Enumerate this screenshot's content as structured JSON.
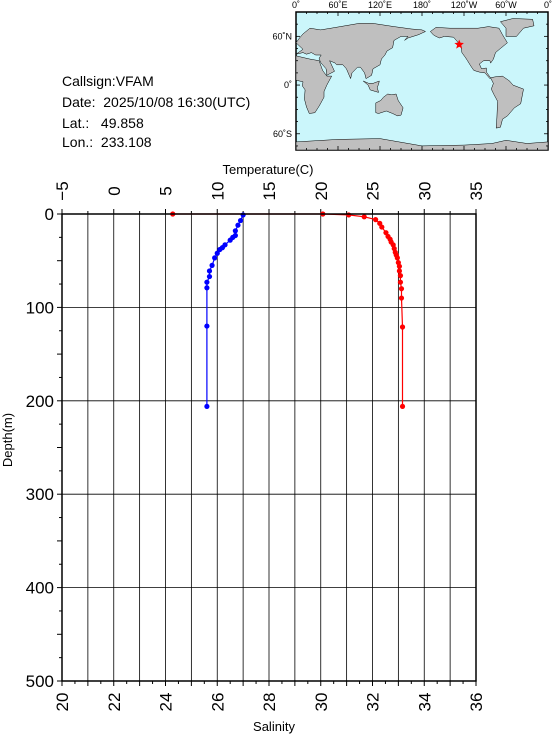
{
  "info": {
    "callsign": "Callsign:VFAM",
    "date": "Date:  2025/10/08 16:30(UTC)",
    "lat": "Lat.:   49.858",
    "lon": "Lon.:  233.108"
  },
  "map": {
    "lon_labels": [
      "0˚",
      "60˚E",
      "120˚E",
      "180˚",
      "120˚W",
      "60˚W",
      "0˚"
    ],
    "lat_labels": [
      "60˚N",
      "0˚",
      "60˚S"
    ],
    "ocean_color": "#cbf6fb",
    "land_color": "#bfbfbf",
    "marker_color": "#ff0000",
    "marker_lon": 233.108,
    "marker_lat": 49.858
  },
  "chart_data": {
    "type": "line",
    "title": "",
    "y_label": "Depth(m)",
    "y_range": [
      0,
      500
    ],
    "y_ticks": [
      "0",
      "100",
      "200",
      "300",
      "400",
      "500"
    ],
    "y_inverted": true,
    "x_top_label": "Temperature(C)",
    "x_top_range": [
      -5,
      35
    ],
    "x_top_ticks": [
      "−5",
      "0",
      "5",
      "10",
      "15",
      "20",
      "25",
      "30",
      "35"
    ],
    "x_bottom_label": "Salinity",
    "x_bottom_range": [
      20,
      36
    ],
    "x_bottom_ticks": [
      "20",
      "22",
      "24",
      "26",
      "28",
      "30",
      "32",
      "34",
      "36"
    ],
    "grid": true,
    "series": [
      {
        "axis": "temperature",
        "color": "#ff0000",
        "points": [
          [
            5.7,
            0
          ],
          [
            20.2,
            0
          ],
          [
            22.7,
            1
          ],
          [
            24.2,
            3
          ],
          [
            25.3,
            6
          ],
          [
            25.7,
            10
          ],
          [
            25.9,
            14
          ],
          [
            26.3,
            20
          ],
          [
            26.5,
            24
          ],
          [
            26.7,
            27
          ],
          [
            26.8,
            30
          ],
          [
            27.0,
            33
          ],
          [
            27.1,
            37
          ],
          [
            27.2,
            41
          ],
          [
            27.3,
            44
          ],
          [
            27.4,
            47
          ],
          [
            27.5,
            52
          ],
          [
            27.6,
            56
          ],
          [
            27.6,
            61
          ],
          [
            27.7,
            66
          ],
          [
            27.7,
            73
          ],
          [
            27.8,
            80
          ],
          [
            27.8,
            90
          ],
          [
            27.9,
            121
          ],
          [
            27.9,
            206
          ]
        ]
      },
      {
        "axis": "salinity",
        "color": "#0000ff",
        "points": [
          [
            27.0,
            1
          ],
          [
            26.9,
            7
          ],
          [
            26.8,
            12
          ],
          [
            26.7,
            18
          ],
          [
            26.7,
            23
          ],
          [
            26.6,
            25
          ],
          [
            26.5,
            28
          ],
          [
            26.3,
            33
          ],
          [
            26.2,
            36
          ],
          [
            26.1,
            38
          ],
          [
            26.0,
            42
          ],
          [
            25.9,
            47
          ],
          [
            25.8,
            55
          ],
          [
            25.7,
            61
          ],
          [
            25.7,
            67
          ],
          [
            25.6,
            73
          ],
          [
            25.6,
            79
          ],
          [
            25.6,
            120
          ],
          [
            25.6,
            206
          ]
        ]
      }
    ]
  }
}
